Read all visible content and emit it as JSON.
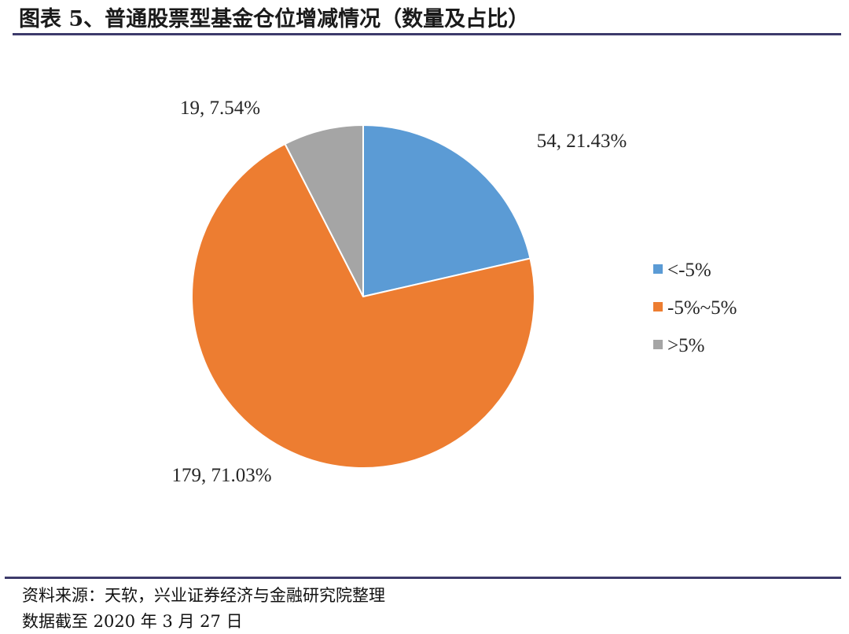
{
  "title": "图表 5、普通股票型基金仓位增减情况（数量及占比）",
  "source": {
    "line1": "资料来源：天软，兴业证券经济与金融研究院整理",
    "line2": "数据截至 2020 年 3 月 27 日"
  },
  "chart_data": {
    "type": "pie",
    "title": "",
    "categories": [
      "<-5%",
      "-5%~5%",
      ">5%"
    ],
    "values": [
      54,
      179,
      19
    ],
    "percentages": [
      "21.43%",
      "71.03%",
      "7.54%"
    ],
    "data_labels": [
      "54, 21.43%",
      "179, 71.03%",
      "19, 7.54%"
    ],
    "colors": [
      "#5B9BD5",
      "#ED7D31",
      "#A5A5A5"
    ],
    "start_angle": "12 o'clock",
    "direction": "clockwise",
    "legend": {
      "placement": "right",
      "entries": [
        "<-5%",
        "-5%~5%",
        ">5%"
      ]
    }
  }
}
